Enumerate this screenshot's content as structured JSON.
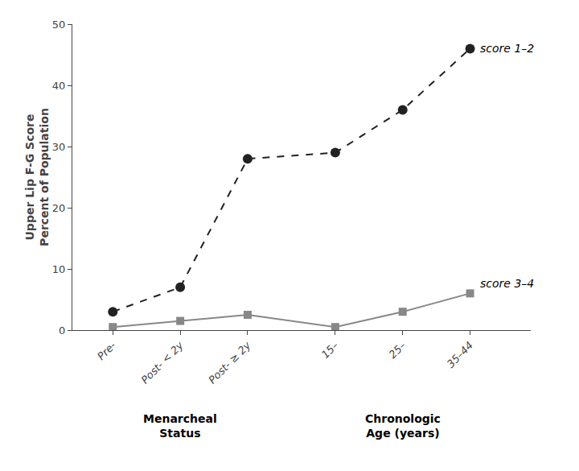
{
  "chart_data": {
    "type": "line",
    "ylabel": "Upper Lip F-G Score\nPercent of Population",
    "xlabel": [
      "Menarcheal\nStatus",
      "Chronologic\nAge (years)"
    ],
    "categories": [
      "Pre-",
      "Post- < 2y",
      "Post- ≥ 2y",
      "15–",
      "25–",
      "35–44"
    ],
    "series": [
      {
        "name": "score 1–2",
        "color": "#222222",
        "line_style": "dashed",
        "marker": "circle",
        "values": [
          3.0,
          7.0,
          28.0,
          29.0,
          36.0,
          46.0
        ]
      },
      {
        "name": "score 3–4",
        "color": "#888888",
        "line_style": "solid",
        "marker": "square",
        "values": [
          0.5,
          1.5,
          2.5,
          0.5,
          3.0,
          6.0
        ]
      }
    ],
    "ylim": [
      0,
      50
    ],
    "yticks": [
      0,
      10,
      20,
      30,
      40,
      50
    ],
    "grid": false
  }
}
